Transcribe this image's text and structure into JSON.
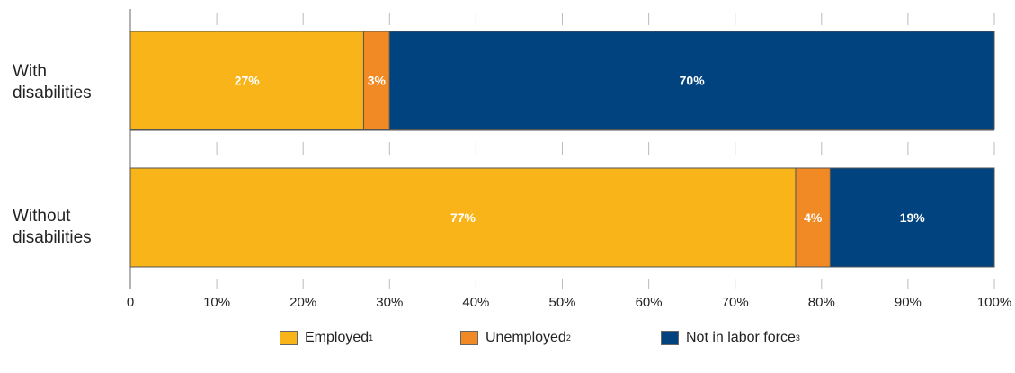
{
  "chart_data": {
    "type": "bar",
    "orientation": "horizontal",
    "stacked": true,
    "categories": [
      "With\ndisabilities",
      "Without\ndisabilities"
    ],
    "series": [
      {
        "name": "Employed",
        "footnote": "1",
        "color": "#F8B418",
        "values": [
          27,
          77
        ]
      },
      {
        "name": "Unemployed",
        "footnote": "2",
        "color": "#F18A24",
        "values": [
          3,
          4
        ]
      },
      {
        "name": "Not in labor force",
        "footnote": "3",
        "color": "#00437F",
        "values": [
          70,
          19
        ]
      }
    ],
    "data_labels": [
      [
        "27%",
        "3%",
        "70%"
      ],
      [
        "77%",
        "4%",
        "19%"
      ]
    ],
    "xlim": [
      0,
      100
    ],
    "xticks": [
      0,
      10,
      20,
      30,
      40,
      50,
      60,
      70,
      80,
      90,
      100
    ],
    "xtick_labels": [
      "0",
      "10%",
      "20%",
      "30%",
      "40%",
      "50%",
      "60%",
      "70%",
      "80%",
      "90%",
      "100%"
    ],
    "grid": "vertical, tick marks only",
    "legend_position": "bottom"
  }
}
